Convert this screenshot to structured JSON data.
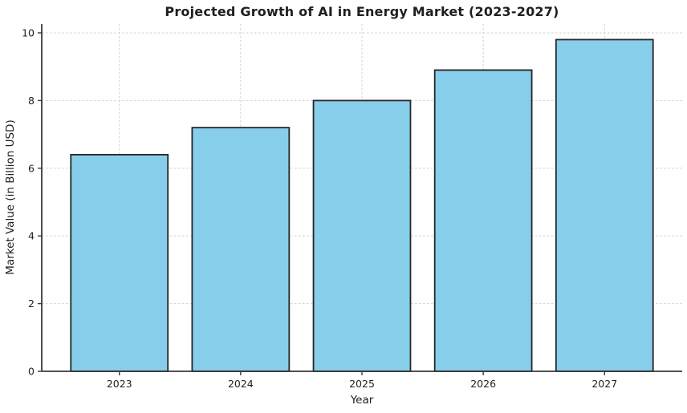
{
  "chart_data": {
    "type": "bar",
    "title": "Projected Growth of AI in Energy Market (2023-2027)",
    "xlabel": "Year",
    "ylabel": "Market Value (in Billion USD)",
    "categories": [
      "2023",
      "2024",
      "2025",
      "2026",
      "2027"
    ],
    "values": [
      6.4,
      7.2,
      8.0,
      8.9,
      9.8
    ],
    "yticks": [
      0,
      2,
      4,
      6,
      8,
      10
    ],
    "ylim": [
      0,
      10.26
    ],
    "bar_width_fraction": 0.8,
    "grid": "both-axes-dashed",
    "legend": "none",
    "colors": {
      "bar_fill": "#87CEEB",
      "bar_edge": "#262626",
      "grid_line": "#d0d0d0",
      "axis_line": "#3a3a3a",
      "text": "#1f1f1f",
      "background": "#ffffff"
    }
  }
}
